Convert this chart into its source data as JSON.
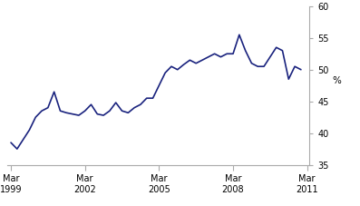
{
  "x_values": [
    1999.25,
    1999.5,
    1999.75,
    2000.0,
    2000.25,
    2000.5,
    2000.75,
    2001.0,
    2001.25,
    2001.5,
    2001.75,
    2002.0,
    2002.25,
    2002.5,
    2002.75,
    2003.0,
    2003.25,
    2003.5,
    2003.75,
    2004.0,
    2004.25,
    2004.5,
    2004.75,
    2005.0,
    2005.25,
    2005.5,
    2005.75,
    2006.0,
    2006.25,
    2006.5,
    2006.75,
    2007.0,
    2007.25,
    2007.5,
    2007.75,
    2008.0,
    2008.25,
    2008.5,
    2008.75,
    2009.0,
    2009.25,
    2009.5,
    2009.75,
    2010.0,
    2010.25,
    2010.5,
    2010.75,
    2011.0
  ],
  "y_values": [
    38.5,
    37.5,
    39.0,
    40.5,
    42.5,
    43.5,
    44.0,
    46.5,
    43.5,
    43.2,
    43.0,
    42.8,
    43.5,
    44.5,
    43.0,
    42.8,
    43.5,
    44.8,
    43.5,
    43.2,
    44.0,
    44.5,
    45.5,
    45.5,
    47.5,
    49.5,
    50.5,
    50.0,
    50.8,
    51.5,
    51.0,
    51.5,
    52.0,
    52.5,
    52.0,
    52.5,
    52.5,
    55.5,
    53.0,
    51.0,
    50.5,
    50.5,
    52.0,
    53.5,
    53.0,
    48.5,
    50.5,
    50.0
  ],
  "line_color": "#1a237e",
  "line_width": 1.2,
  "xlim": [
    1999.1,
    2011.35
  ],
  "ylim": [
    35,
    60
  ],
  "yticks": [
    35,
    40,
    45,
    50,
    55,
    60
  ],
  "xtick_positions": [
    1999.25,
    2002.25,
    2005.25,
    2008.25,
    2011.25
  ],
  "xtick_labels_line1": [
    "Mar",
    "Mar",
    "Mar",
    "Mar",
    "Mar"
  ],
  "xtick_labels_line2": [
    "1999",
    "2002",
    "2005",
    "2008",
    "2011"
  ],
  "ylabel": "%",
  "background_color": "#ffffff",
  "spine_color": "#aaaaaa"
}
